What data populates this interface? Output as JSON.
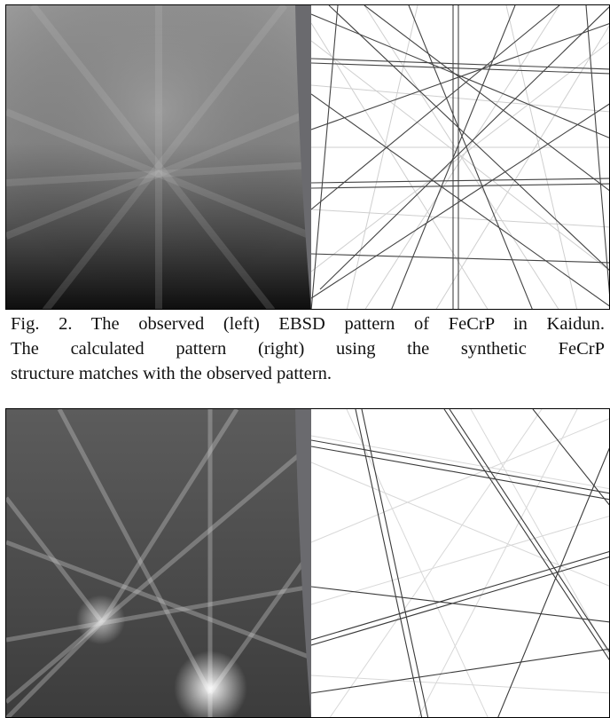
{
  "figure2": {
    "caption_line1": "Fig. 2. The observed (left) EBSD pattern of FeCrP in Kaidun.",
    "caption_line2": "The calculated pattern (right) using the synthetic FeCrP",
    "caption_line3": "structure matches with the observed pattern.",
    "left_panel": "observed EBSD pattern",
    "right_panel": "calculated pattern"
  },
  "figure3": {
    "left_panel": "observed EBSD pattern",
    "right_panel": "calculated pattern"
  }
}
